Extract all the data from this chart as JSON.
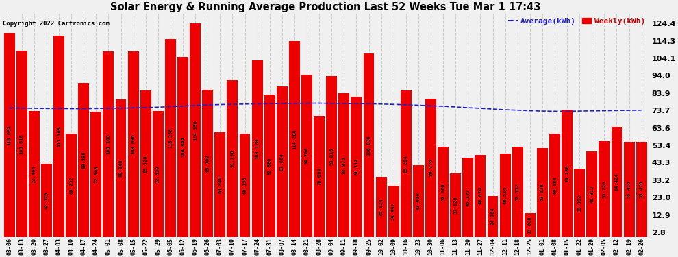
{
  "title": "Solar Energy & Running Average Production Last 52 Weeks Tue Mar 1 17:43",
  "copyright": "Copyright 2022 Cartronics.com",
  "ylabel_right_ticks": [
    2.8,
    12.9,
    23.0,
    33.2,
    43.3,
    53.4,
    63.6,
    73.7,
    83.9,
    94.0,
    104.1,
    114.3,
    124.4
  ],
  "bar_color": "#ee0000",
  "avg_line_color": "#2222cc",
  "weekly_color": "#cc0000",
  "background_color": "#f0f0f0",
  "plot_bg_color": "#f0f0f0",
  "grid_color": "#cccccc",
  "categories": [
    "03-06",
    "03-13",
    "03-20",
    "03-27",
    "04-03",
    "04-10",
    "04-17",
    "04-24",
    "05-01",
    "05-08",
    "05-15",
    "05-22",
    "05-29",
    "06-05",
    "06-12",
    "06-19",
    "06-26",
    "07-03",
    "07-10",
    "07-17",
    "07-24",
    "07-31",
    "08-07",
    "08-14",
    "08-21",
    "08-28",
    "09-04",
    "09-11",
    "09-18",
    "09-25",
    "10-02",
    "10-09",
    "10-16",
    "10-23",
    "10-30",
    "11-06",
    "11-13",
    "11-20",
    "11-27",
    "12-04",
    "12-11",
    "12-18",
    "12-25",
    "01-01",
    "01-08",
    "01-15",
    "01-22",
    "01-29",
    "02-05",
    "02-12",
    "02-19",
    "02-26"
  ],
  "weekly_values": [
    119.092,
    108.616,
    73.464,
    42.52,
    117.168,
    60.232,
    89.896,
    72.908,
    108.108,
    80.04,
    108.096,
    85.52,
    73.52,
    115.256,
    104.844,
    124.396,
    85.708,
    60.84,
    91.296,
    60.396,
    103.128,
    82.88,
    87.664,
    114.28,
    94.704,
    70.664,
    93.816,
    83.876,
    81.712,
    106.836,
    35.124,
    29.892,
    85.204,
    42.016,
    80.776,
    52.76,
    37.12,
    46.132,
    48.024,
    24.084,
    48.524,
    52.552,
    13.828,
    52.028,
    60.184,
    74.188,
    39.992,
    49.912,
    55.72,
    64.424,
    55.476,
    55.476
  ],
  "avg_values": [
    75.2,
    75.1,
    75.0,
    74.9,
    74.9,
    74.8,
    74.8,
    74.9,
    75.0,
    75.1,
    75.3,
    75.5,
    75.7,
    76.0,
    76.3,
    76.7,
    77.0,
    77.2,
    77.4,
    77.5,
    77.6,
    77.7,
    77.8,
    77.9,
    78.0,
    78.0,
    77.9,
    77.8,
    77.7,
    77.7,
    77.5,
    77.3,
    77.1,
    76.8,
    76.5,
    76.2,
    75.8,
    75.4,
    75.0,
    74.6,
    74.2,
    73.9,
    73.6,
    73.4,
    73.3,
    73.3,
    73.4,
    73.5,
    73.6,
    73.7,
    73.8,
    73.9
  ],
  "ymin": 0,
  "ymax": 130
}
